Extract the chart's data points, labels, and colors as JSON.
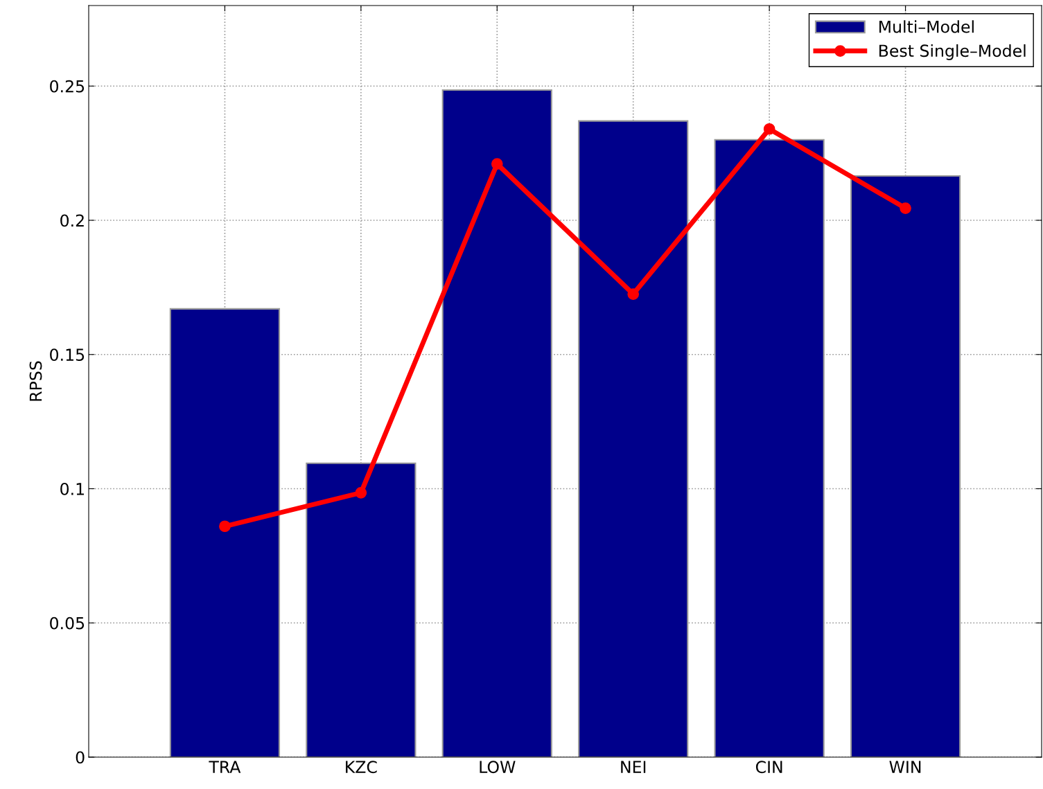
{
  "chart_data": {
    "type": "bar",
    "ylabel": "RPSS",
    "categories": [
      "TRA",
      "KZC",
      "LOW",
      "NEI",
      "CIN",
      "WIN"
    ],
    "series": [
      {
        "name": "Multi–Model",
        "color": "#00008b",
        "values": [
          0.167,
          0.1095,
          0.2485,
          0.237,
          0.23,
          0.2165
        ]
      },
      {
        "name": "Best Single–Model",
        "type": "line",
        "color": "#ff0000",
        "marker": "circle",
        "line_style": "solid",
        "values": [
          0.086,
          0.0985,
          0.221,
          0.1725,
          0.234,
          0.2045
        ]
      }
    ],
    "ylim": [
      0,
      0.28
    ],
    "yticks": [
      0,
      0.05,
      0.1,
      0.15,
      0.2,
      0.25
    ],
    "grid": true,
    "legend": "top right"
  }
}
